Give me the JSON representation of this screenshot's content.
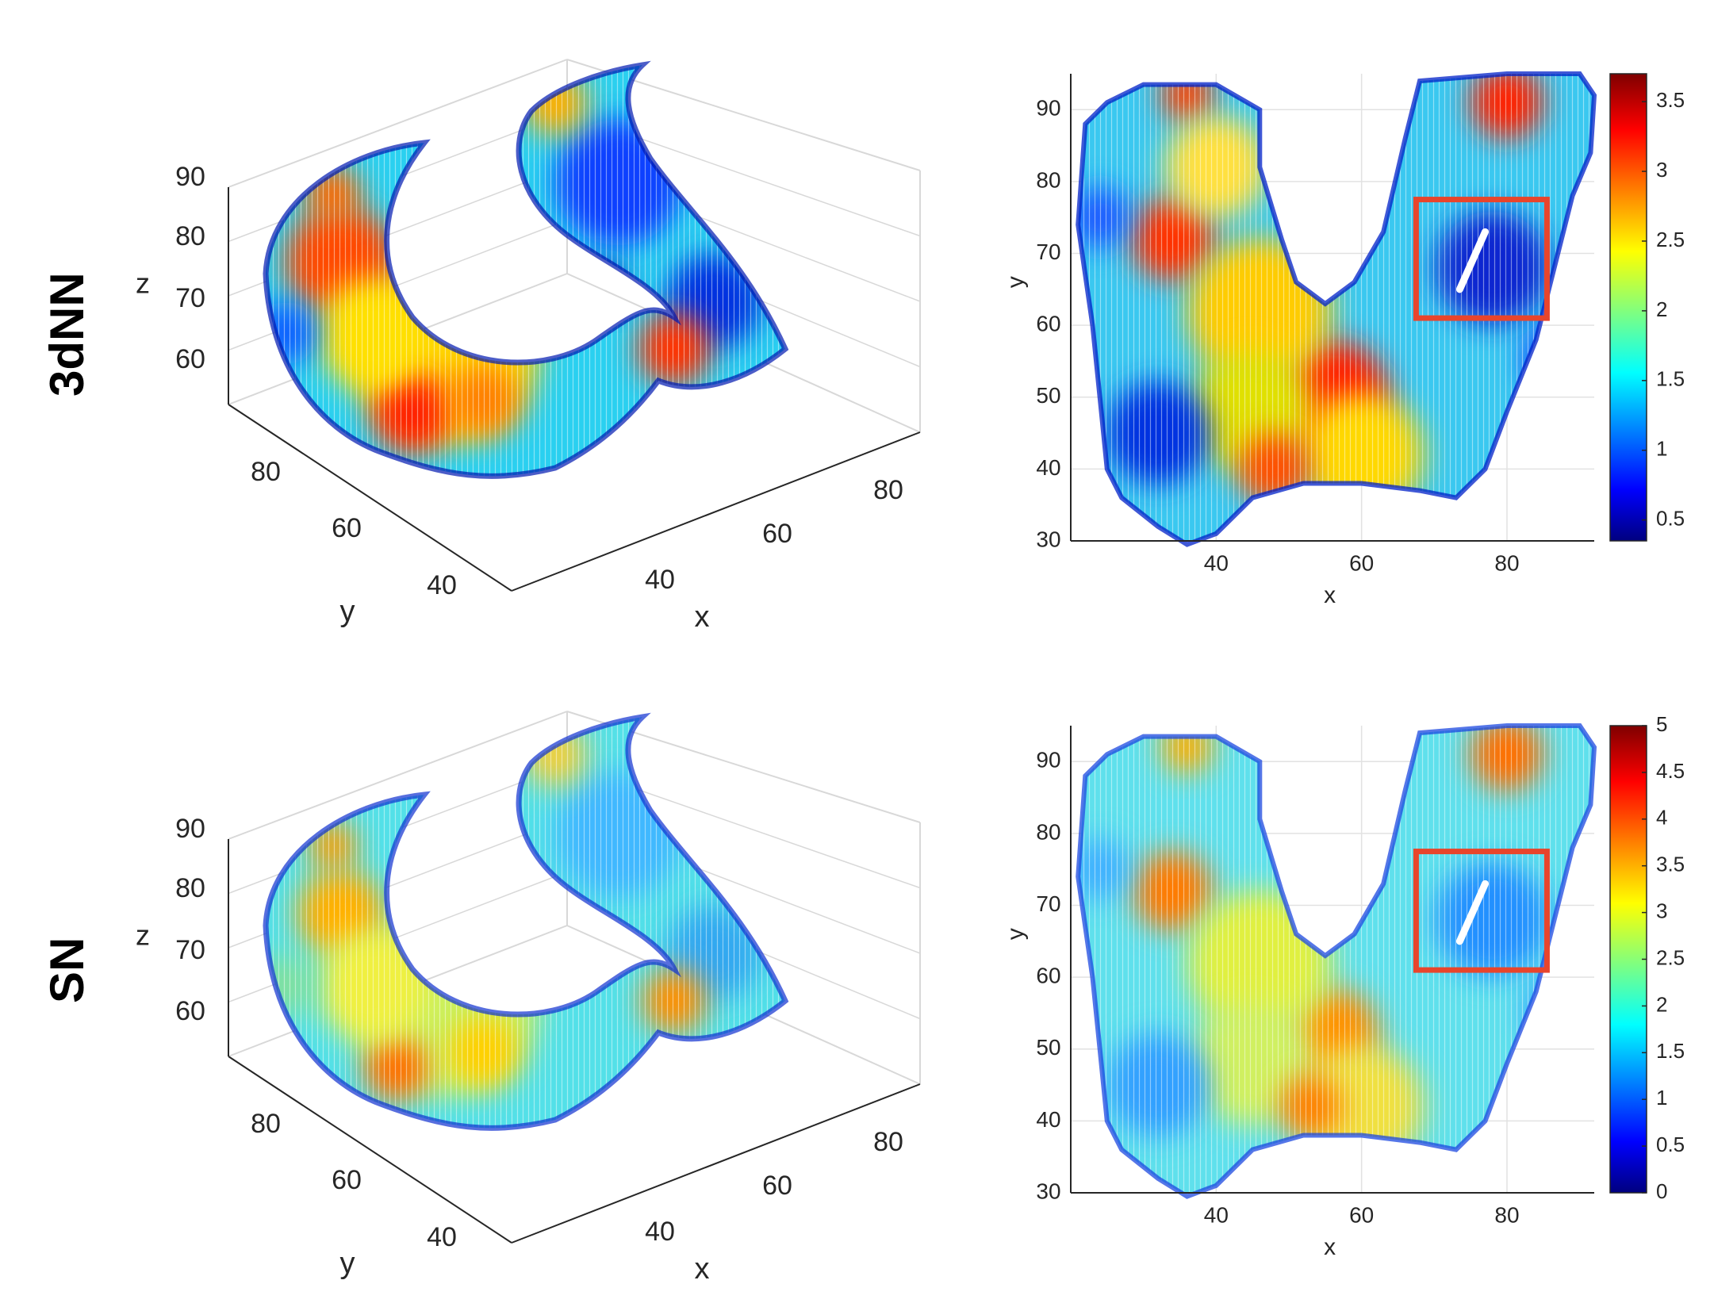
{
  "figure": {
    "row_labels": [
      "3dNN",
      "SN"
    ]
  },
  "chart_data": [
    {
      "type": "scatter",
      "panel": "3dNN-3d",
      "view": "3d surface point cloud",
      "xlabel": "x",
      "ylabel": "y",
      "zlabel": "z",
      "x_ticks": [
        "40",
        "60",
        "80"
      ],
      "y_ticks": [
        "40",
        "60",
        "80"
      ],
      "z_ticks": [
        "60",
        "70",
        "80",
        "90"
      ],
      "colormap": "jet",
      "grid": true
    },
    {
      "type": "heatmap",
      "panel": "3dNN-2d",
      "xlabel": "x",
      "ylabel": "y",
      "xlim": [
        20,
        92
      ],
      "ylim": [
        30,
        95
      ],
      "x_ticks": [
        "40",
        "60",
        "80"
      ],
      "y_ticks": [
        "30",
        "40",
        "50",
        "60",
        "70",
        "80",
        "90"
      ],
      "colorbar": {
        "min": 0.35,
        "max": 3.7,
        "ticks": [
          "0.5",
          "1",
          "1.5",
          "2",
          "2.5",
          "3",
          "3.5"
        ]
      },
      "highlight_box": {
        "x": [
          67.5,
          85.5
        ],
        "y": [
          61,
          77.5
        ],
        "color": "#e8452c"
      },
      "colormap": "jet",
      "grid": true
    },
    {
      "type": "scatter",
      "panel": "SN-3d",
      "view": "3d surface point cloud",
      "xlabel": "x",
      "ylabel": "y",
      "zlabel": "z",
      "x_ticks": [
        "40",
        "60",
        "80"
      ],
      "y_ticks": [
        "40",
        "60",
        "80"
      ],
      "z_ticks": [
        "60",
        "70",
        "80",
        "90"
      ],
      "colormap": "jet",
      "grid": true
    },
    {
      "type": "heatmap",
      "panel": "SN-2d",
      "xlabel": "x",
      "ylabel": "y",
      "xlim": [
        20,
        92
      ],
      "ylim": [
        30,
        95
      ],
      "x_ticks": [
        "40",
        "60",
        "80"
      ],
      "y_ticks": [
        "30",
        "40",
        "50",
        "60",
        "70",
        "80",
        "90"
      ],
      "colorbar": {
        "min": 0,
        "max": 5,
        "ticks": [
          "0",
          "0.5",
          "1",
          "1.5",
          "2",
          "2.5",
          "3",
          "3.5",
          "4",
          "4.5",
          "5"
        ]
      },
      "highlight_box": {
        "x": [
          67.5,
          85.5
        ],
        "y": [
          61,
          77.5
        ],
        "color": "#e8452c"
      },
      "colormap": "jet",
      "grid": true
    }
  ]
}
